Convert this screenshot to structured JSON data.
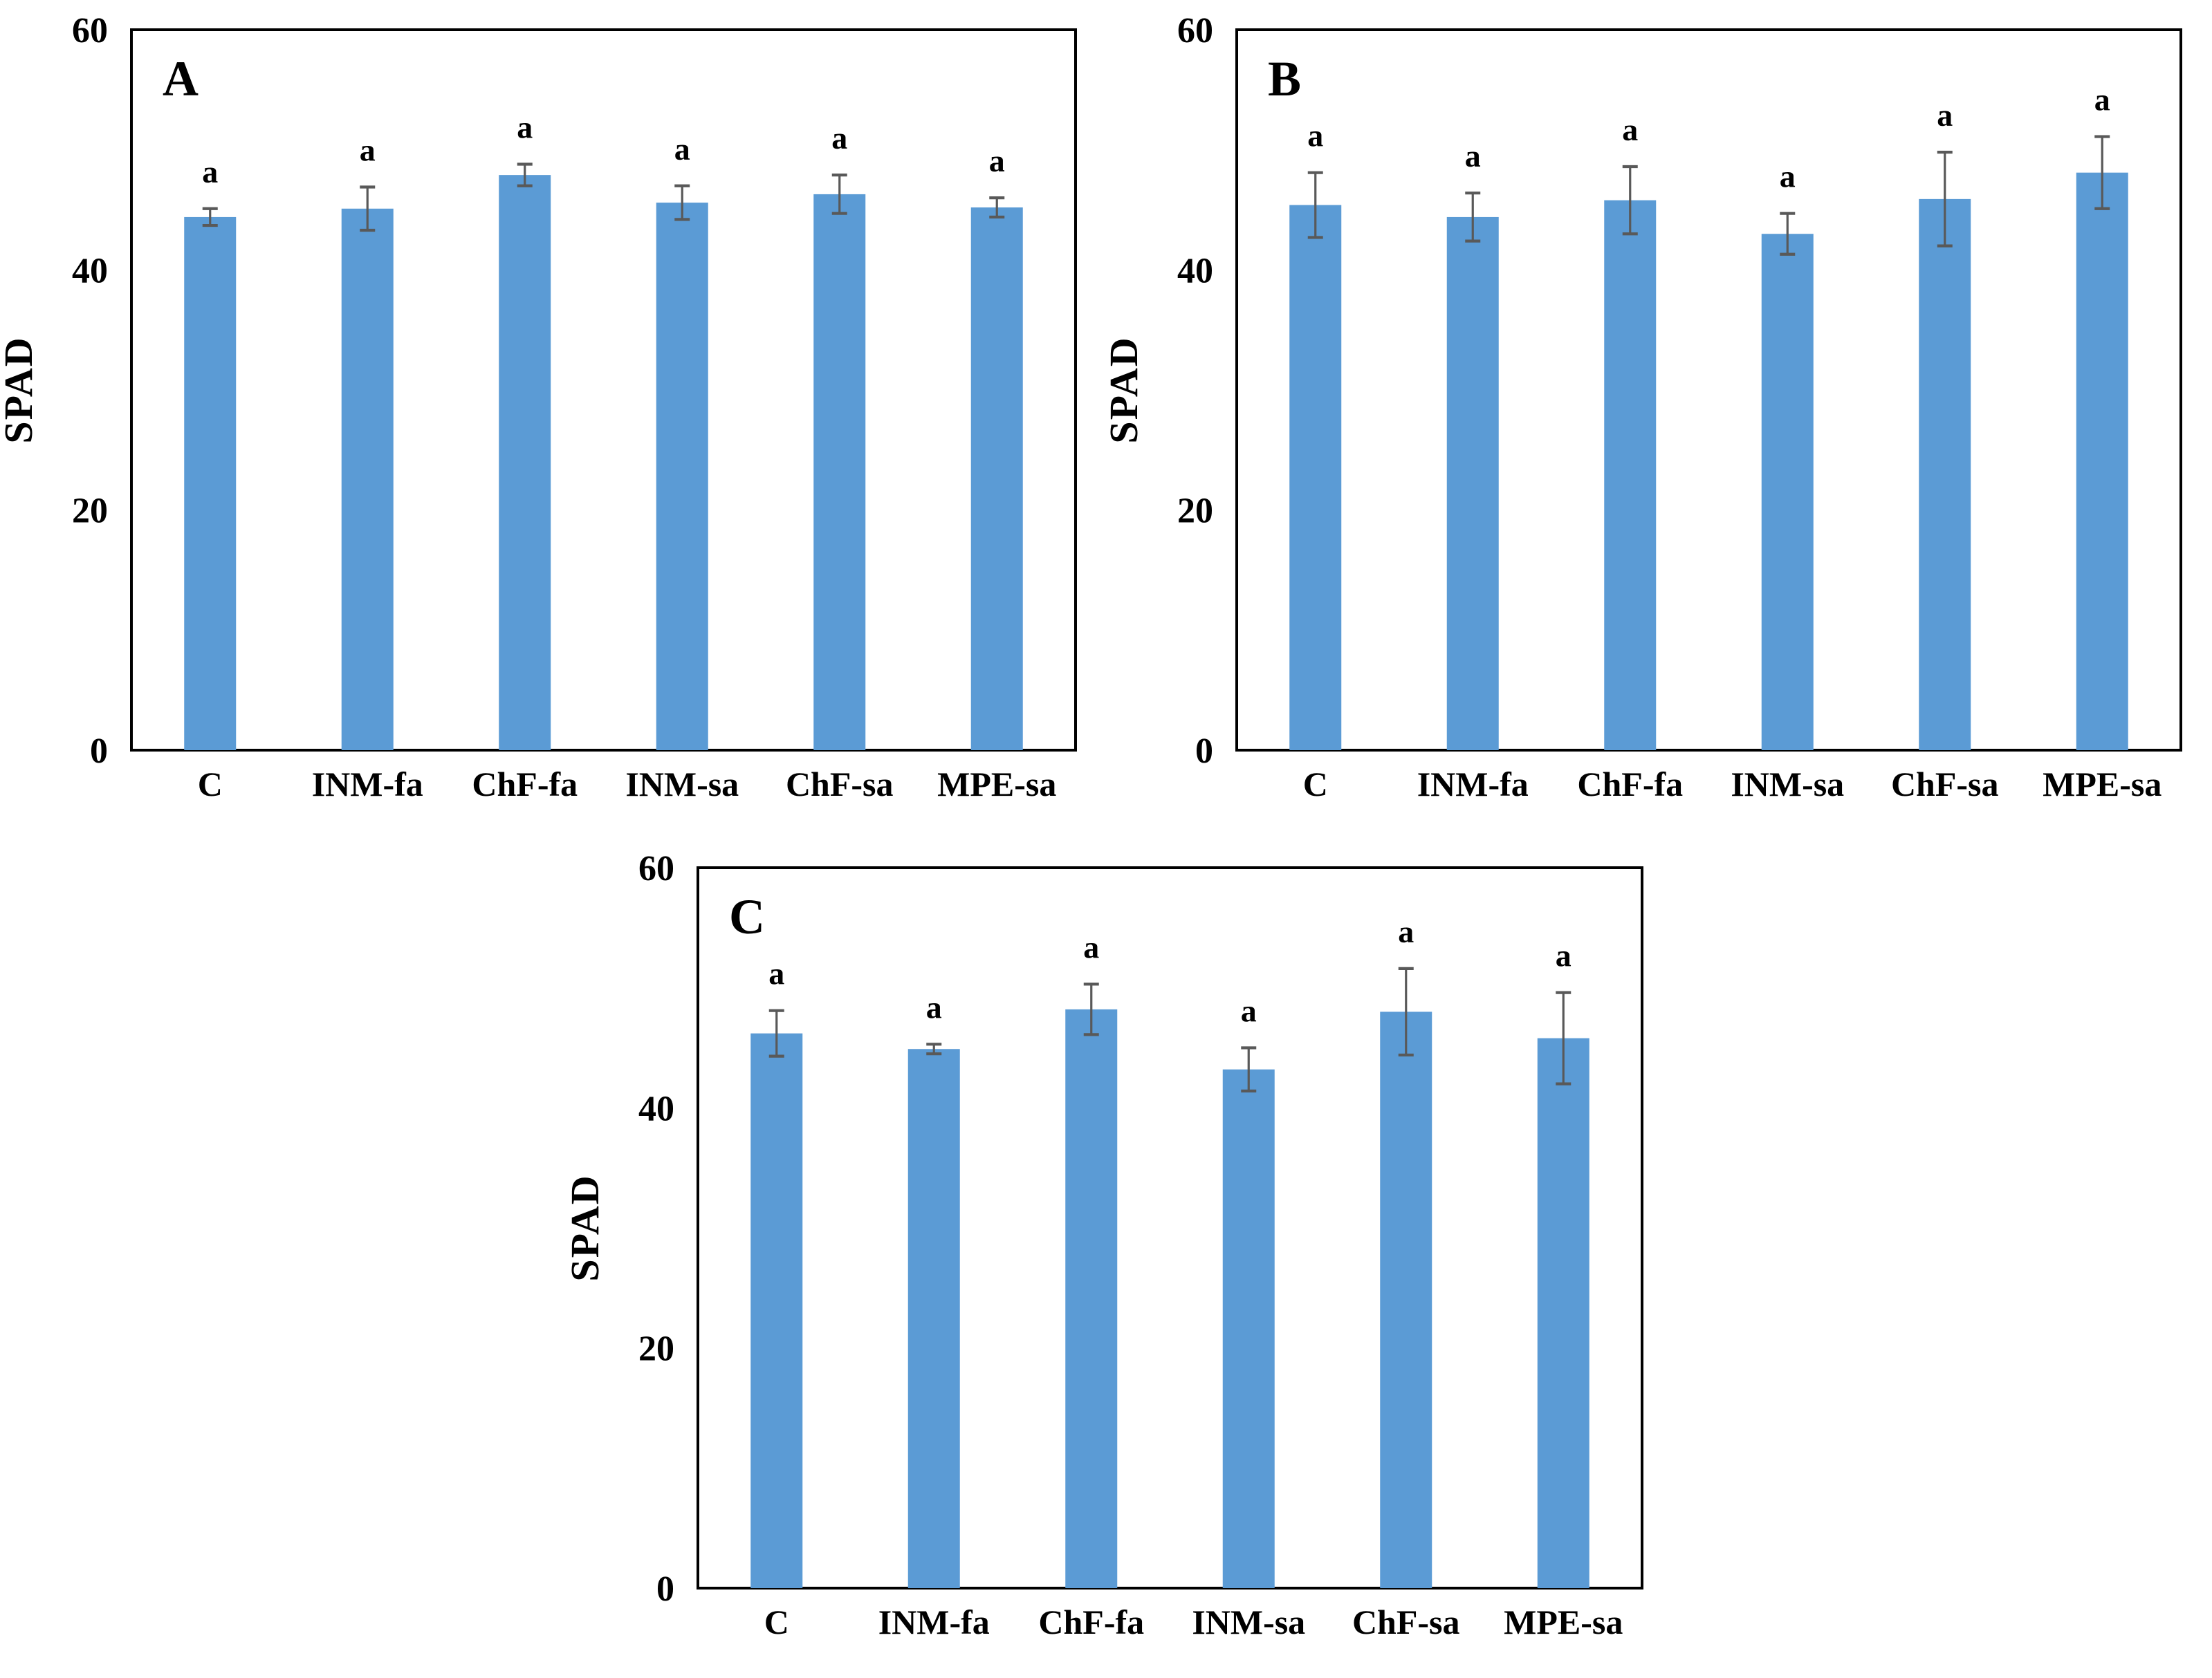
{
  "figure": {
    "ylabel": "SPAD",
    "ylim": [
      0,
      60
    ],
    "yticks": [
      0,
      20,
      40,
      60
    ],
    "categories": [
      "C",
      "INM-fa",
      "ChF-fa",
      "INM-sa",
      "ChF-sa",
      "MPE-sa"
    ]
  },
  "chart_data": [
    {
      "type": "bar",
      "panel_label": "A",
      "title": "",
      "xlabel": "",
      "ylabel": "SPAD",
      "ylim": [
        0,
        60
      ],
      "yticks": [
        0,
        20,
        40,
        60
      ],
      "grid": false,
      "legend": "none",
      "categories": [
        "C",
        "INM-fa",
        "ChF-fa",
        "INM-sa",
        "ChF-sa",
        "MPE-sa"
      ],
      "values": [
        44.4,
        45.1,
        47.9,
        45.6,
        46.3,
        45.2
      ],
      "errors": [
        0.7,
        1.8,
        0.9,
        1.4,
        1.6,
        0.8
      ],
      "sig_letters": [
        "a",
        "a",
        "a",
        "a",
        "a",
        "a"
      ]
    },
    {
      "type": "bar",
      "panel_label": "B",
      "title": "",
      "xlabel": "",
      "ylabel": "SPAD",
      "ylim": [
        0,
        60
      ],
      "yticks": [
        0,
        20,
        40,
        60
      ],
      "grid": false,
      "legend": "none",
      "categories": [
        "C",
        "INM-fa",
        "ChF-fa",
        "INM-sa",
        "ChF-sa",
        "MPE-sa"
      ],
      "values": [
        45.4,
        44.4,
        45.8,
        43.0,
        45.9,
        48.1
      ],
      "errors": [
        2.7,
        2.0,
        2.8,
        1.7,
        3.9,
        3.0
      ],
      "sig_letters": [
        "a",
        "a",
        "a",
        "a",
        "a",
        "a"
      ]
    },
    {
      "type": "bar",
      "panel_label": "C",
      "title": "",
      "xlabel": "",
      "ylabel": "SPAD",
      "ylim": [
        0,
        60
      ],
      "yticks": [
        0,
        20,
        40,
        60
      ],
      "grid": false,
      "legend": "none",
      "categories": [
        "C",
        "INM-fa",
        "ChF-fa",
        "INM-sa",
        "ChF-sa",
        "MPE-sa"
      ],
      "values": [
        46.2,
        44.9,
        48.2,
        43.2,
        48.0,
        45.8
      ],
      "errors": [
        1.9,
        0.4,
        2.1,
        1.8,
        3.6,
        3.8
      ],
      "sig_letters": [
        "a",
        "a",
        "a",
        "a",
        "a",
        "a"
      ]
    }
  ],
  "colors": {
    "bar": "#5B9BD5",
    "error_bar": "#595959",
    "axis": "#000000",
    "text": "#000000",
    "background": "#FFFFFF"
  }
}
